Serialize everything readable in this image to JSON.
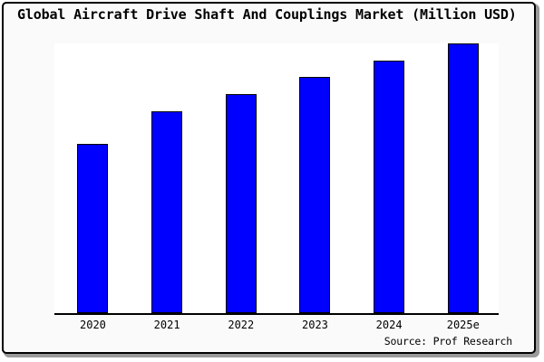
{
  "window": {
    "background_color": "#fafafa",
    "frame_border_color": "#000000",
    "shadow_color": "#9a9a9a"
  },
  "header": {
    "title": "Global Aircraft Drive Shaft And Couplings Market (Million USD)"
  },
  "chart_data": {
    "type": "bar",
    "title": "Global Aircraft Drive Shaft And Couplings Market (Million USD)",
    "categories": [
      "2020",
      "2021",
      "2022",
      "2023",
      "2024",
      "2025e"
    ],
    "values": [
      62.7,
      75.0,
      81.3,
      87.5,
      93.7,
      100.0
    ],
    "value_note": "y-axis is unlabeled in source image; values are relative heights indexed to 2025e = 100",
    "xlabel": "",
    "ylabel": "",
    "ylim": [
      0,
      100.7
    ],
    "grid": false,
    "legend": false,
    "bar_color": "#0000ff",
    "bar_border_color": "#000000",
    "plot_background": "#ffffff"
  },
  "footer": {
    "source_label": "Source: Prof Research"
  }
}
